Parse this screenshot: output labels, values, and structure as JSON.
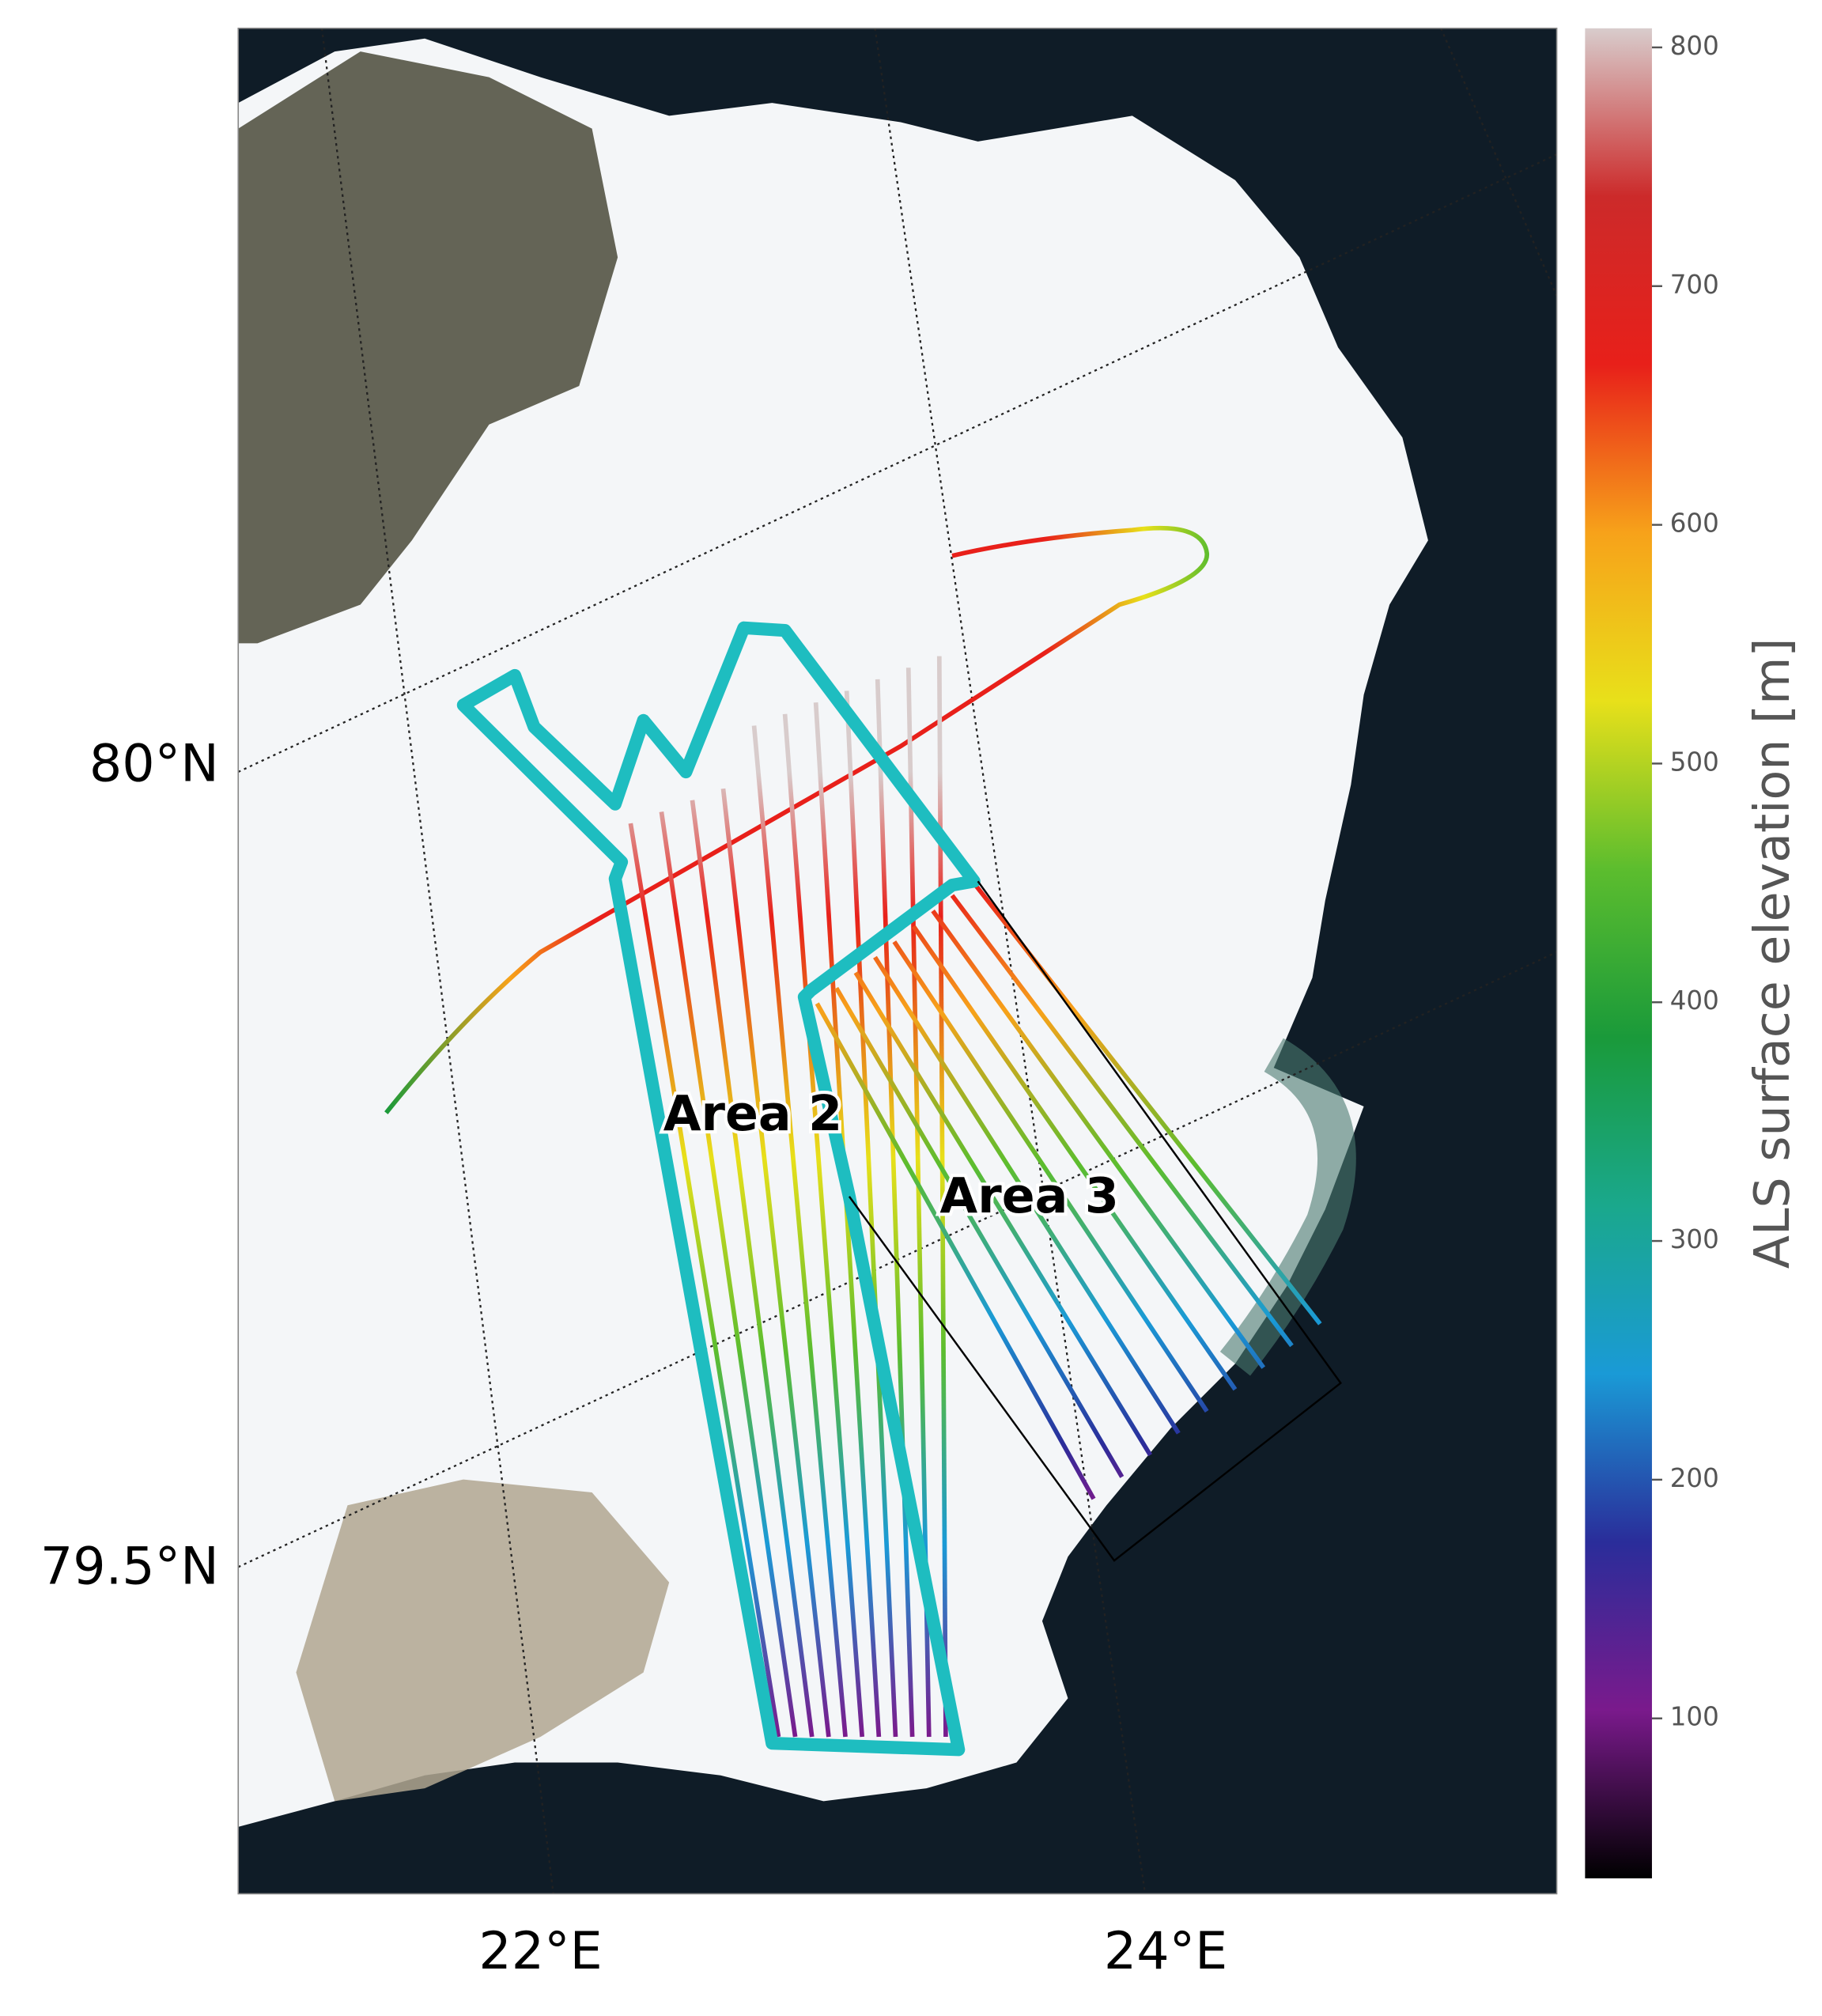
{
  "map": {
    "lat_labels": [
      "80°N",
      "79.5°N"
    ],
    "lon_labels": [
      "22°E",
      "24°E"
    ],
    "annotations": [
      "Area 2",
      "Area 3"
    ],
    "colorbar": {
      "label": "ALS surface elevation [m]",
      "lim": [
        33,
        808
      ],
      "ticks": [
        100,
        200,
        300,
        400,
        500,
        600,
        700,
        800
      ],
      "colors": [
        "#000000",
        "#7a1a8c",
        "#2a2d9a",
        "#1a9ad6",
        "#1aa88c",
        "#1a9a3a",
        "#5cbd2e",
        "#e8e01a",
        "#f7a21a",
        "#e8201a",
        "#cc2a2a",
        "#d8cccc"
      ]
    }
  }
}
